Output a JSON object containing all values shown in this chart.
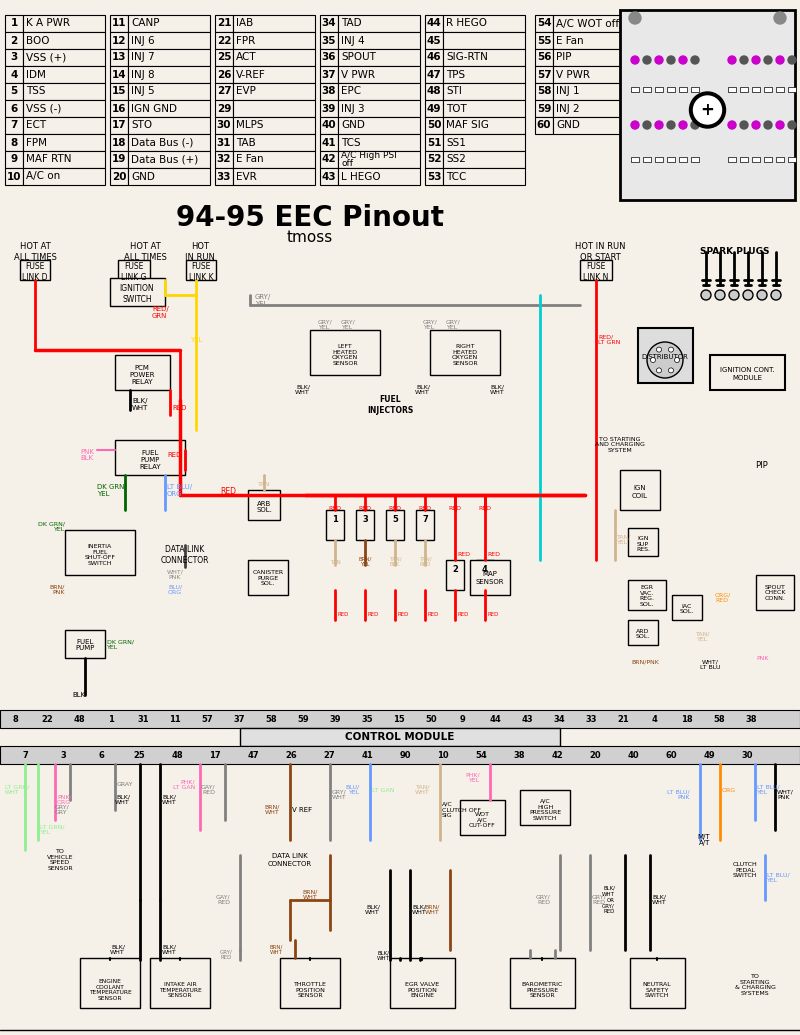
{
  "title": "94-95 EEC Pinout",
  "subtitle": "tmoss",
  "bg_color": "#f5f0e8",
  "pin_table_left": [
    [
      1,
      "K A PWR"
    ],
    [
      2,
      "BOO"
    ],
    [
      3,
      "VSS (+)"
    ],
    [
      4,
      "IDM"
    ],
    [
      5,
      "TSS"
    ],
    [
      6,
      "VSS (-)"
    ],
    [
      7,
      "ECT"
    ],
    [
      8,
      "FPM"
    ],
    [
      9,
      "MAF RTN"
    ],
    [
      10,
      "A/C on"
    ]
  ],
  "pin_table_mid1": [
    [
      11,
      "CANP"
    ],
    [
      12,
      "INJ 6"
    ],
    [
      13,
      "INJ 7"
    ],
    [
      14,
      "INJ 8"
    ],
    [
      15,
      "INJ 5"
    ],
    [
      16,
      "IGN GND"
    ],
    [
      17,
      "STO"
    ],
    [
      18,
      "Data Bus (-)"
    ],
    [
      19,
      "Data Bus (+)"
    ],
    [
      20,
      "GND"
    ]
  ],
  "pin_table_mid2": [
    [
      21,
      "IAB"
    ],
    [
      22,
      "FPR"
    ],
    [
      25,
      "ACT"
    ],
    [
      26,
      "V-REF"
    ],
    [
      27,
      "EVP"
    ],
    [
      29,
      ""
    ],
    [
      30,
      "MLPS"
    ],
    [
      31,
      "TAB"
    ],
    [
      32,
      "E Fan"
    ],
    [
      33,
      "EVR"
    ]
  ],
  "pin_table_mid3": [
    [
      34,
      "TAD"
    ],
    [
      35,
      "INJ 4"
    ],
    [
      36,
      "SPOUT"
    ],
    [
      37,
      "V PWR"
    ],
    [
      38,
      "EPC"
    ],
    [
      39,
      "INJ 3"
    ],
    [
      40,
      "GND"
    ],
    [
      41,
      "TCS"
    ],
    [
      42,
      "A/C High PSI\noff"
    ],
    [
      43,
      "L HEGO"
    ]
  ],
  "pin_table_mid4": [
    [
      44,
      "R HEGO"
    ],
    [
      45,
      ""
    ],
    [
      46,
      "SIG-RTN"
    ],
    [
      47,
      "TPS"
    ],
    [
      48,
      "STI"
    ],
    [
      49,
      "TOT"
    ],
    [
      50,
      "MAF SIG"
    ],
    [
      51,
      "SS1"
    ],
    [
      52,
      "SS2"
    ],
    [
      53,
      "TCC"
    ]
  ],
  "pin_table_right": [
    [
      54,
      "A/C WOT off"
    ],
    [
      55,
      "E Fan"
    ],
    [
      56,
      "PIP"
    ],
    [
      57,
      "V PWR"
    ],
    [
      58,
      "INJ 1"
    ],
    [
      59,
      "INJ 2"
    ],
    [
      60,
      "GND"
    ]
  ],
  "wire_colors": {
    "red": "#FF0000",
    "dark_red": "#CC0000",
    "orange": "#FF8C00",
    "yellow": "#FFD700",
    "green": "#00AA00",
    "dk_green": "#006400",
    "lt_green": "#90EE90",
    "blue": "#0000FF",
    "lt_blue": "#4169E1",
    "cyan": "#00BFFF",
    "purple": "#800080",
    "pink": "#FF69B4",
    "brown": "#8B4513",
    "tan": "#D2B48C",
    "white": "#FFFFFF",
    "black": "#000000",
    "gray": "#808080",
    "dk_gray": "#404040"
  }
}
